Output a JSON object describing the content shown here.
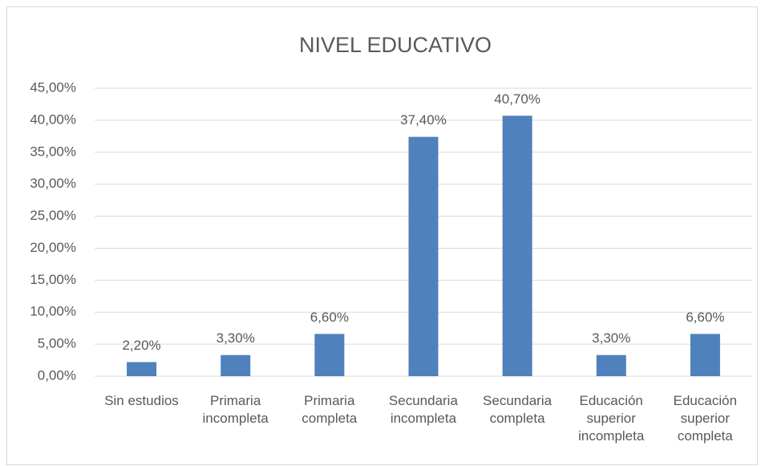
{
  "chart_data": {
    "type": "bar",
    "title": "NIVEL EDUCATIVO",
    "categories": [
      "Sin estudios",
      "Primaria incompleta",
      "Primaria completa",
      "Secundaria incompleta",
      "Secundaria completa",
      "Educación superior incompleta",
      "Educación superior completa"
    ],
    "values": [
      2.2,
      3.3,
      6.6,
      37.4,
      40.7,
      3.3,
      6.6
    ],
    "value_labels": [
      "2,20%",
      "3,30%",
      "6,60%",
      "37,40%",
      "40,70%",
      "3,30%",
      "6,60%"
    ],
    "color": "#4f81bd",
    "ylim": [
      0,
      45
    ],
    "yticks": [
      {
        "value": 0,
        "label": "0,00%"
      },
      {
        "value": 5,
        "label": "5,00%"
      },
      {
        "value": 10,
        "label": "10,00%"
      },
      {
        "value": 15,
        "label": "15,00%"
      },
      {
        "value": 20,
        "label": "20,00%"
      },
      {
        "value": 25,
        "label": "25,00%"
      },
      {
        "value": 30,
        "label": "30,00%"
      },
      {
        "value": 35,
        "label": "35,00%"
      },
      {
        "value": 40,
        "label": "40,00%"
      },
      {
        "value": 45,
        "label": "45,00%"
      }
    ],
    "grid": true
  }
}
